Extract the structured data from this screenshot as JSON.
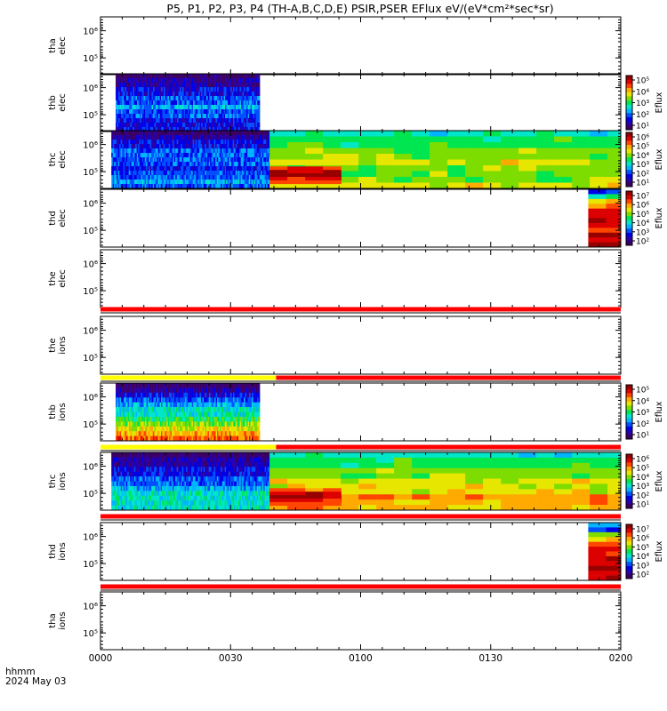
{
  "title": "P5, P1, P2, P3, P4 (TH-A,B,C,D,E) PSIR,PSER EFlux eV/(eV*cm²*sec*sr)",
  "colors": {
    "background": "#ffffff",
    "axes": "#000000",
    "flag_red": "#ff0000",
    "flag_yellow": "#ffff00"
  },
  "colorscale": [
    "#3c0064",
    "#2a00a8",
    "#0000e8",
    "#0050ff",
    "#00b4ff",
    "#00e6c8",
    "#00e650",
    "#7ddc00",
    "#e6e600",
    "#ffaa00",
    "#ff4600",
    "#dc0000",
    "#960000"
  ],
  "chart_data": {
    "type": "heatmap",
    "title": "P5, P1, P2, P3, P4 (TH-A,B,C,D,E) PSIR,PSER EFlux eV/(eV*cm²*sec*sr)",
    "x_axis": {
      "label_line1": "hhmm",
      "label_line2": "2024 May 03",
      "ticks": [
        "0000",
        "0030",
        "0100",
        "0130",
        "0200"
      ],
      "range_minutes": [
        0,
        120
      ]
    },
    "panels": [
      {
        "name": "tha_elec",
        "ylabel": [
          "tha",
          "elec"
        ],
        "ytick_labels": [
          "10⁶",
          "10⁵"
        ],
        "colorbar": null,
        "blocks": []
      },
      {
        "name": "thb_elec",
        "ylabel": [
          "thb",
          "elec"
        ],
        "ytick_labels": [
          "10⁶",
          "10⁵"
        ],
        "colorbar": {
          "ticks": [
            "10⁵",
            "10⁴",
            "10³",
            "10²",
            "10¹"
          ],
          "label": "Eflux"
        },
        "blocks": [
          {
            "t0": 3.5,
            "t1": 36.5,
            "pattern": "spectrogram",
            "rows": [
              0,
              1,
              1,
              2,
              2,
              3,
              3,
              4,
              3,
              3,
              2,
              2,
              2
            ]
          }
        ]
      },
      {
        "name": "thc_elec",
        "ylabel": [
          "thc",
          "elec"
        ],
        "ytick_labels": [
          "10⁶",
          "10⁵"
        ],
        "colorbar": {
          "ticks": [
            "10⁶",
            "10⁵",
            "10⁴",
            "10³",
            "10²",
            "10¹"
          ],
          "label": "Eflux"
        },
        "blocks": [
          {
            "t0": 2.5,
            "t1": 39.0,
            "pattern": "spectrogram",
            "rows": [
              0,
              1,
              2,
              2,
              3,
              3,
              3,
              3,
              2,
              3,
              3,
              4,
              3
            ]
          },
          {
            "t0": 39.0,
            "t1": 120.0,
            "pattern": "bands",
            "rows": [
              5,
              6,
              6,
              7,
              7,
              8,
              7,
              7,
              7,
              8
            ]
          },
          {
            "t0": 39.0,
            "t1": 55.5,
            "pattern": "bands",
            "y0": 0.62,
            "y1": 0.92,
            "rows": [
              10,
              11,
              12,
              11,
              10
            ]
          }
        ]
      },
      {
        "name": "thd_elec",
        "ylabel": [
          "thd",
          "elec"
        ],
        "ytick_labels": [
          "10⁶",
          "10⁵"
        ],
        "colorbar": {
          "ticks": [
            "10⁷",
            "10⁶",
            "10⁵",
            "10⁴",
            "10³",
            "10²"
          ],
          "label": "Eflux"
        },
        "blocks": [
          {
            "t0": 112.5,
            "t1": 120.0,
            "pattern": "bands",
            "rows": [
              3,
              5,
              8,
              10,
              11,
              11,
              12,
              11,
              11,
              12,
              11,
              12
            ]
          }
        ]
      },
      {
        "name": "the_elec",
        "ylabel": [
          "the",
          "elec"
        ],
        "ytick_labels": [
          "10⁶",
          "10⁵"
        ],
        "colorbar": null,
        "blocks": []
      },
      {
        "name": "the_ions",
        "ylabel": [
          "the",
          "ions"
        ],
        "ytick_labels": [
          "10⁶",
          "10⁵"
        ],
        "colorbar": null,
        "blocks": []
      },
      {
        "name": "thb_ions",
        "ylabel": [
          "thb",
          "ions"
        ],
        "ytick_labels": [
          "10⁶",
          "10⁵"
        ],
        "colorbar": {
          "ticks": [
            "10⁵",
            "10⁴",
            "10³",
            "10²",
            "10¹"
          ],
          "label": "Eflux"
        },
        "blocks": [
          {
            "t0": 3.5,
            "t1": 36.5,
            "pattern": "spectrogram",
            "rows": [
              0,
              1,
              2,
              3,
              4,
              5,
              5,
              6,
              7,
              8,
              9,
              10
            ]
          }
        ]
      },
      {
        "name": "thc_ions",
        "ylabel": [
          "thc",
          "ions"
        ],
        "ytick_labels": [
          "10⁶",
          "10⁵"
        ],
        "colorbar": {
          "ticks": [
            "10⁶",
            "10⁵",
            "10⁴",
            "10³",
            "10²",
            "10¹"
          ],
          "label": "Eflux"
        },
        "blocks": [
          {
            "t0": 2.5,
            "t1": 39.0,
            "pattern": "spectrogram",
            "rows": [
              0,
              1,
              1,
              2,
              2,
              3,
              3,
              4,
              5,
              5,
              5,
              5
            ]
          },
          {
            "t0": 39.0,
            "t1": 120.0,
            "pattern": "bands",
            "rows": [
              5,
              6,
              6,
              7,
              7,
              8,
              8,
              8,
              9,
              9,
              9
            ]
          },
          {
            "t0": 39.0,
            "t1": 55.5,
            "pattern": "bands",
            "y0": 0.62,
            "y1": 0.92,
            "rows": [
              10,
              11,
              12,
              11,
              10
            ]
          }
        ]
      },
      {
        "name": "thd_ions",
        "ylabel": [
          "thd",
          "ions"
        ],
        "ytick_labels": [
          "10⁶",
          "10⁵"
        ],
        "colorbar": {
          "ticks": [
            "10⁷",
            "10⁶",
            "10⁵",
            "10⁴",
            "10³",
            "10²"
          ],
          "label": "Eflux"
        },
        "blocks": [
          {
            "t0": 112.5,
            "t1": 120.0,
            "pattern": "bands",
            "rows": [
              3,
              3,
              7,
              9,
              10,
              11,
              11,
              12,
              11,
              12,
              11,
              12
            ]
          }
        ]
      },
      {
        "name": "tha_ions",
        "ylabel": [
          "tha",
          "ions"
        ],
        "ytick_labels": [
          "10⁶",
          "10⁵"
        ],
        "colorbar": null,
        "blocks": []
      }
    ],
    "flag_bars": [
      {
        "after_panel": 4,
        "segments": [
          {
            "t0": 0,
            "t1": 120,
            "color": "red"
          }
        ]
      },
      {
        "after_panel": 5,
        "segments": [
          {
            "t0": 0,
            "t1": 40.5,
            "color": "yellow"
          },
          {
            "t0": 40.5,
            "t1": 120,
            "color": "red"
          }
        ]
      },
      {
        "after_panel": 6,
        "segments": [
          {
            "t0": 0,
            "t1": 40.5,
            "color": "yellow"
          },
          {
            "t0": 40.5,
            "t1": 120,
            "color": "red"
          }
        ]
      },
      {
        "after_panel": 7,
        "segments": [
          {
            "t0": 0,
            "t1": 120,
            "color": "red"
          }
        ]
      },
      {
        "after_panel": 8,
        "segments": [
          {
            "t0": 0,
            "t1": 120,
            "color": "red"
          }
        ]
      }
    ]
  }
}
